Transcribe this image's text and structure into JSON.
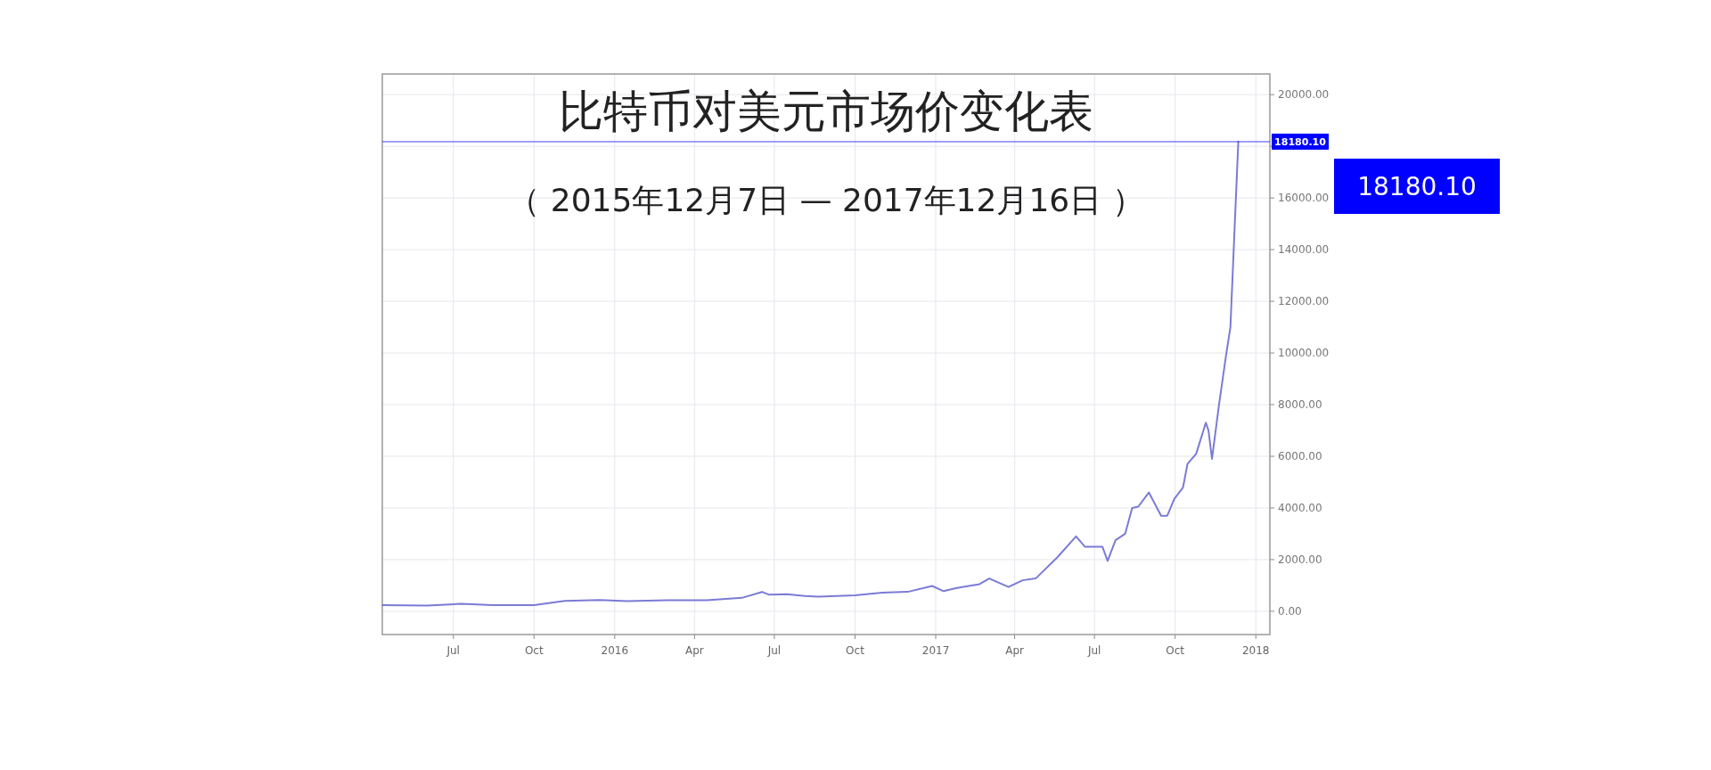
{
  "chart_data": {
    "type": "line",
    "title": "比特币对美元市场价变化表",
    "subtitle": "（ 2015年12月7日 — 2017年12月16日 ）",
    "x": [
      "2015-04-11",
      "2015-06-01",
      "2015-07-10",
      "2015-08-15",
      "2015-10-01",
      "2015-11-05",
      "2015-12-15",
      "2016-01-15",
      "2016-03-01",
      "2016-04-15",
      "2016-05-25",
      "2016-06-17",
      "2016-06-25",
      "2016-07-15",
      "2016-08-05",
      "2016-08-20",
      "2016-10-01",
      "2016-11-01",
      "2016-12-01",
      "2016-12-28",
      "2017-01-10",
      "2017-01-25",
      "2017-02-20",
      "2017-03-03",
      "2017-03-25",
      "2017-04-10",
      "2017-04-25",
      "2017-05-20",
      "2017-06-10",
      "2017-06-20",
      "2017-07-10",
      "2017-07-16",
      "2017-07-25",
      "2017-08-05",
      "2017-08-13",
      "2017-08-20",
      "2017-09-01",
      "2017-09-15",
      "2017-09-22",
      "2017-09-30",
      "2017-10-10",
      "2017-10-15",
      "2017-10-25",
      "2017-11-05",
      "2017-11-08",
      "2017-11-12",
      "2017-11-20",
      "2017-11-28",
      "2017-12-03",
      "2017-12-08",
      "2017-12-12"
    ],
    "series": [
      {
        "color": "#7b7bd6",
        "values": [
          240,
          225,
          290,
          240,
          240,
          400,
          440,
          390,
          430,
          430,
          520,
          750,
          640,
          660,
          590,
          570,
          615,
          720,
          760,
          980,
          780,
          900,
          1050,
          1270,
          940,
          1200,
          1270,
          2100,
          2900,
          2500,
          2500,
          1950,
          2750,
          3000,
          4000,
          4050,
          4600,
          3700,
          3700,
          4350,
          4800,
          5700,
          6100,
          7300,
          7000,
          5900,
          8000,
          9900,
          11000,
          15000,
          18180.1
        ]
      }
    ],
    "xlim": [
      "2015-04-11",
      "2018-01-17"
    ],
    "xticks": [
      {
        "value": "2015-07-01",
        "label": "Jul"
      },
      {
        "value": "2015-10-01",
        "label": "Oct"
      },
      {
        "value": "2016-01-01",
        "label": "2016"
      },
      {
        "value": "2016-04-01",
        "label": "Apr"
      },
      {
        "value": "2016-07-01",
        "label": "Jul"
      },
      {
        "value": "2016-10-01",
        "label": "Oct"
      },
      {
        "value": "2017-01-01",
        "label": "2017"
      },
      {
        "value": "2017-04-01",
        "label": "Apr"
      },
      {
        "value": "2017-07-01",
        "label": "Jul"
      },
      {
        "value": "2017-10-01",
        "label": "Oct"
      },
      {
        "value": "2018-01-01",
        "label": "2018"
      }
    ],
    "ylim": [
      -900,
      20800
    ],
    "yticks": [
      {
        "value": 0,
        "label": "0.00"
      },
      {
        "value": 2000,
        "label": "2000.00"
      },
      {
        "value": 4000,
        "label": "4000.00"
      },
      {
        "value": 6000,
        "label": "6000.00"
      },
      {
        "value": 8000,
        "label": "8000.00"
      },
      {
        "value": 10000,
        "label": "10000.00"
      },
      {
        "value": 12000,
        "label": "12000.00"
      },
      {
        "value": 14000,
        "label": "14000.00"
      },
      {
        "value": 16000,
        "label": "16000.00"
      },
      {
        "value": 18000,
        "label": null
      },
      {
        "value": 20000,
        "label": "20000.00"
      }
    ],
    "grid": true,
    "ref_lines": [
      {
        "axis": "y",
        "value": 18180.1,
        "label": "18180.10",
        "color": "#0000ff"
      }
    ],
    "annotations": [
      "18180.10"
    ]
  }
}
